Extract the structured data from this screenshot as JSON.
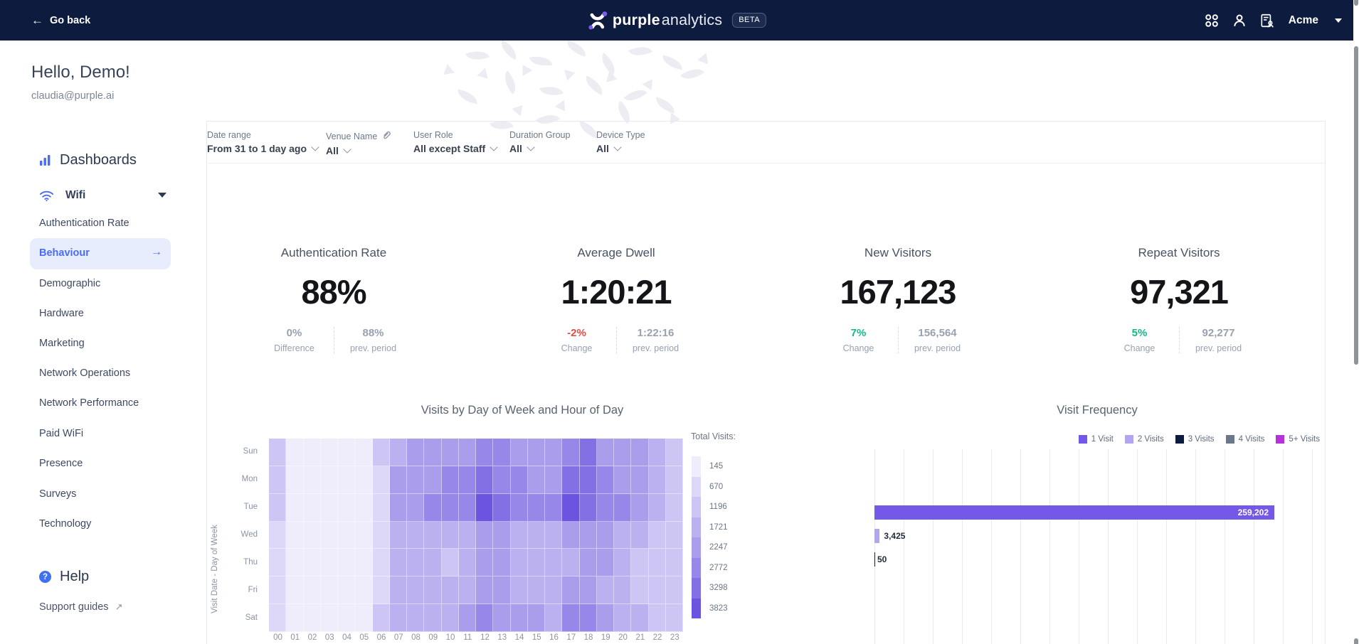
{
  "topbar": {
    "go_back_label": "Go back",
    "brand_bold": "purple",
    "brand_light": "analytics",
    "beta_badge": "BETA",
    "org_name": "Acme"
  },
  "header": {
    "greeting": "Hello, Demo!",
    "email": "claudia@purple.ai"
  },
  "sidebar": {
    "dashboards_heading": "Dashboards",
    "group_label": "Wifi",
    "items": [
      {
        "label": "Authentication Rate",
        "active": false
      },
      {
        "label": "Behaviour",
        "active": true
      },
      {
        "label": "Demographic",
        "active": false
      },
      {
        "label": "Hardware",
        "active": false
      },
      {
        "label": "Marketing",
        "active": false
      },
      {
        "label": "Network Operations",
        "active": false
      },
      {
        "label": "Network Performance",
        "active": false
      },
      {
        "label": "Paid WiFi",
        "active": false
      },
      {
        "label": "Presence",
        "active": false
      },
      {
        "label": "Surveys",
        "active": false
      },
      {
        "label": "Technology",
        "active": false
      }
    ],
    "help_heading": "Help",
    "support_link": "Support guides"
  },
  "filters": [
    {
      "label": "Date range",
      "value": "From 31 to 1 day ago",
      "icon": null
    },
    {
      "label": "Venue Name",
      "value": "All",
      "icon": "paperclip-icon"
    },
    {
      "label": "User Role",
      "value": "All except Staff",
      "icon": null
    },
    {
      "label": "Duration Group",
      "value": "All",
      "icon": null
    },
    {
      "label": "Device Type",
      "value": "All",
      "icon": null
    }
  ],
  "kpis": [
    {
      "title": "Authentication Rate",
      "value": "88%",
      "stats": [
        {
          "value": "0%",
          "label": "Difference",
          "tone": "neutral"
        },
        {
          "value": "88%",
          "label": "prev. period",
          "tone": "neutral"
        }
      ]
    },
    {
      "title": "Average Dwell",
      "value": "1:20:21",
      "stats": [
        {
          "value": "-2%",
          "label": "Change",
          "tone": "negative"
        },
        {
          "value": "1:22:16",
          "label": "prev. period",
          "tone": "neutral"
        }
      ]
    },
    {
      "title": "New Visitors",
      "value": "167,123",
      "stats": [
        {
          "value": "7%",
          "label": "Change",
          "tone": "positive"
        },
        {
          "value": "156,564",
          "label": "prev. period",
          "tone": "neutral"
        }
      ]
    },
    {
      "title": "Repeat Visitors",
      "value": "97,321",
      "stats": [
        {
          "value": "5%",
          "label": "Change",
          "tone": "positive"
        },
        {
          "value": "92,277",
          "label": "prev. period",
          "tone": "neutral"
        }
      ]
    }
  ],
  "chart_data": [
    {
      "type": "heatmap",
      "title": "Visits by Day of Week and Hour of Day",
      "ylabel": "Visit Date - Day of Week",
      "rows": [
        "Sun",
        "Mon",
        "Tue",
        "Wed",
        "Thu",
        "Fri",
        "Sat"
      ],
      "cols": [
        "00",
        "01",
        "02",
        "03",
        "04",
        "05",
        "06",
        "07",
        "08",
        "09",
        "10",
        "11",
        "12",
        "13",
        "14",
        "15",
        "16",
        "17",
        "18",
        "19",
        "20",
        "21",
        "22",
        "23"
      ],
      "legend_title": "Total Visits:",
      "scale_values": [
        "145",
        "670",
        "1196",
        "1721",
        "2247",
        "2772",
        "3298",
        "3823"
      ],
      "palette": [
        "#efecfc",
        "#ded8f8",
        "#cdc5f4",
        "#bcb1f0",
        "#aa9dec",
        "#9787e8",
        "#8270e4",
        "#6c53e0"
      ],
      "levels": [
        [
          2,
          0,
          0,
          0,
          0,
          0,
          2,
          3,
          4,
          4,
          4,
          4,
          5,
          5,
          4,
          4,
          4,
          5,
          6,
          4,
          4,
          4,
          3,
          2
        ],
        [
          2,
          0,
          0,
          0,
          0,
          0,
          1,
          4,
          4,
          4,
          5,
          5,
          6,
          5,
          5,
          4,
          4,
          6,
          6,
          5,
          4,
          4,
          3,
          2
        ],
        [
          2,
          0,
          0,
          0,
          0,
          0,
          1,
          4,
          4,
          5,
          5,
          5,
          7,
          6,
          5,
          5,
          5,
          7,
          6,
          5,
          5,
          4,
          3,
          2
        ],
        [
          1,
          0,
          0,
          0,
          0,
          0,
          1,
          3,
          3,
          3,
          3,
          3,
          4,
          4,
          3,
          3,
          3,
          4,
          4,
          4,
          3,
          3,
          2,
          2
        ],
        [
          1,
          0,
          0,
          0,
          0,
          0,
          1,
          3,
          3,
          3,
          2,
          3,
          4,
          4,
          3,
          3,
          3,
          3,
          4,
          4,
          3,
          2,
          2,
          2
        ],
        [
          1,
          0,
          0,
          0,
          0,
          0,
          1,
          3,
          3,
          3,
          3,
          3,
          4,
          4,
          3,
          3,
          3,
          4,
          4,
          3,
          3,
          2,
          2,
          2
        ],
        [
          1,
          0,
          0,
          0,
          0,
          0,
          2,
          3,
          3,
          3,
          3,
          4,
          5,
          4,
          4,
          4,
          3,
          5,
          5,
          4,
          3,
          3,
          2,
          2
        ]
      ]
    },
    {
      "type": "bar",
      "title": "Visit Frequency",
      "legend": [
        {
          "name": "1 Visit",
          "color": "#7458e8"
        },
        {
          "name": "2 Visits",
          "color": "#b3a5f1"
        },
        {
          "name": "3 Visits",
          "color": "#0d1b3e"
        },
        {
          "name": "4 Visits",
          "color": "#6b7889"
        },
        {
          "name": "5+ Visits",
          "color": "#b832dc"
        }
      ],
      "bars": [
        {
          "name": "1 Visit",
          "value": 259202,
          "label": "259,202"
        },
        {
          "name": "2 Visits",
          "value": 3425,
          "label": "3,425"
        },
        {
          "name": "3 Visits",
          "value": 50,
          "label": "50"
        }
      ],
      "xlabel": "",
      "ylabel": "",
      "grid": "vertical",
      "legend_position": "top-right"
    }
  ],
  "colors": {
    "navy": "#0d1b3e",
    "accent_blue": "#4a6cf5",
    "bar_purple": "#7458e8",
    "positive_green": "#13b789",
    "negative_red": "#e84a42"
  }
}
